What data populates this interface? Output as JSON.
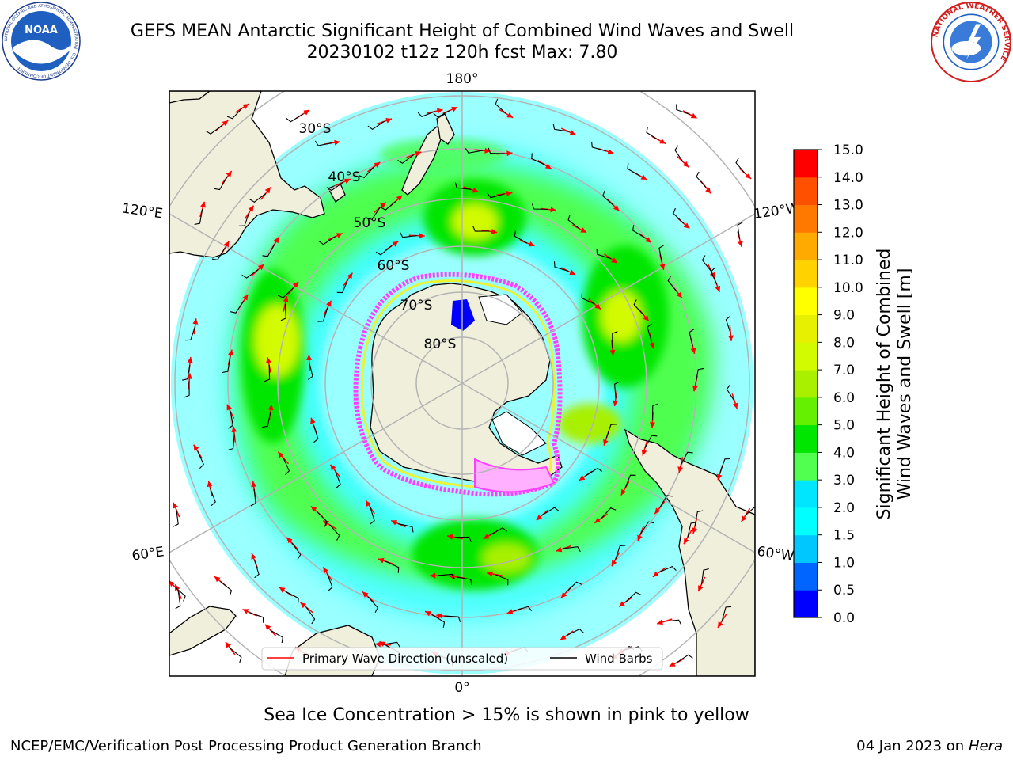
{
  "title": {
    "line1": "GEFS MEAN Antarctic Significant Height of Combined Wind Waves and Swell",
    "line2": "20230102 t12z 120h fcst   Max: 7.80"
  },
  "logos": {
    "left": "noaa-logo",
    "left_text": "NOAA",
    "left_ring_text": "NATIONAL OCEANIC AND ATMOSPHERIC ADMINISTRATION · U.S. DEPARTMENT OF COMMERCE",
    "right": "nws-logo",
    "right_ring_text": "NATIONAL WEATHER SERVICE"
  },
  "map": {
    "projection": "south-polar-stereographic",
    "lon_labels": {
      "top": "180°",
      "bottom": "0°",
      "upper_left": "120°E",
      "upper_right": "120°W",
      "lower_left": "60°E",
      "lower_right": "60°W"
    },
    "lat_labels": [
      "30°S",
      "40°S",
      "50°S",
      "60°S",
      "70°S",
      "80°S"
    ],
    "legend": {
      "wave_label": "Primary Wave Direction (unscaled)",
      "wave_color": "#ff0000",
      "barb_label": "Wind Barbs",
      "barb_color": "#000000"
    },
    "colors": {
      "land": "#efefdc",
      "grid": "#b4b4b4",
      "ice_pink": "#ff3cff",
      "ice_yellow": "#fff000"
    }
  },
  "colorbar": {
    "label_line1": "Significant Height of Combined",
    "label_line2": "Wind Waves and Swell [m]",
    "ticks": [
      "0.0",
      "0.5",
      "1.0",
      "1.5",
      "2.0",
      "3.0",
      "4.0",
      "5.0",
      "6.0",
      "7.0",
      "8.0",
      "9.0",
      "10.0",
      "11.0",
      "12.0",
      "13.0",
      "14.0",
      "15.0"
    ],
    "colors": [
      "#0000ff",
      "#0064ff",
      "#00c8ff",
      "#00ffff",
      "#00e6ff",
      "#50ff50",
      "#00e600",
      "#64f000",
      "#a8f000",
      "#d2fa00",
      "#e6f000",
      "#ffff00",
      "#ffd200",
      "#ffaa00",
      "#ff7800",
      "#ff5000",
      "#ff0000"
    ]
  },
  "footer": {
    "note": "Sea Ice Concentration > 15% is shown in pink to yellow",
    "left": "NCEP/EMC/Verification Post Processing Product Generation Branch",
    "right_date": "04 Jan 2023 on",
    "right_host": "Hera"
  }
}
